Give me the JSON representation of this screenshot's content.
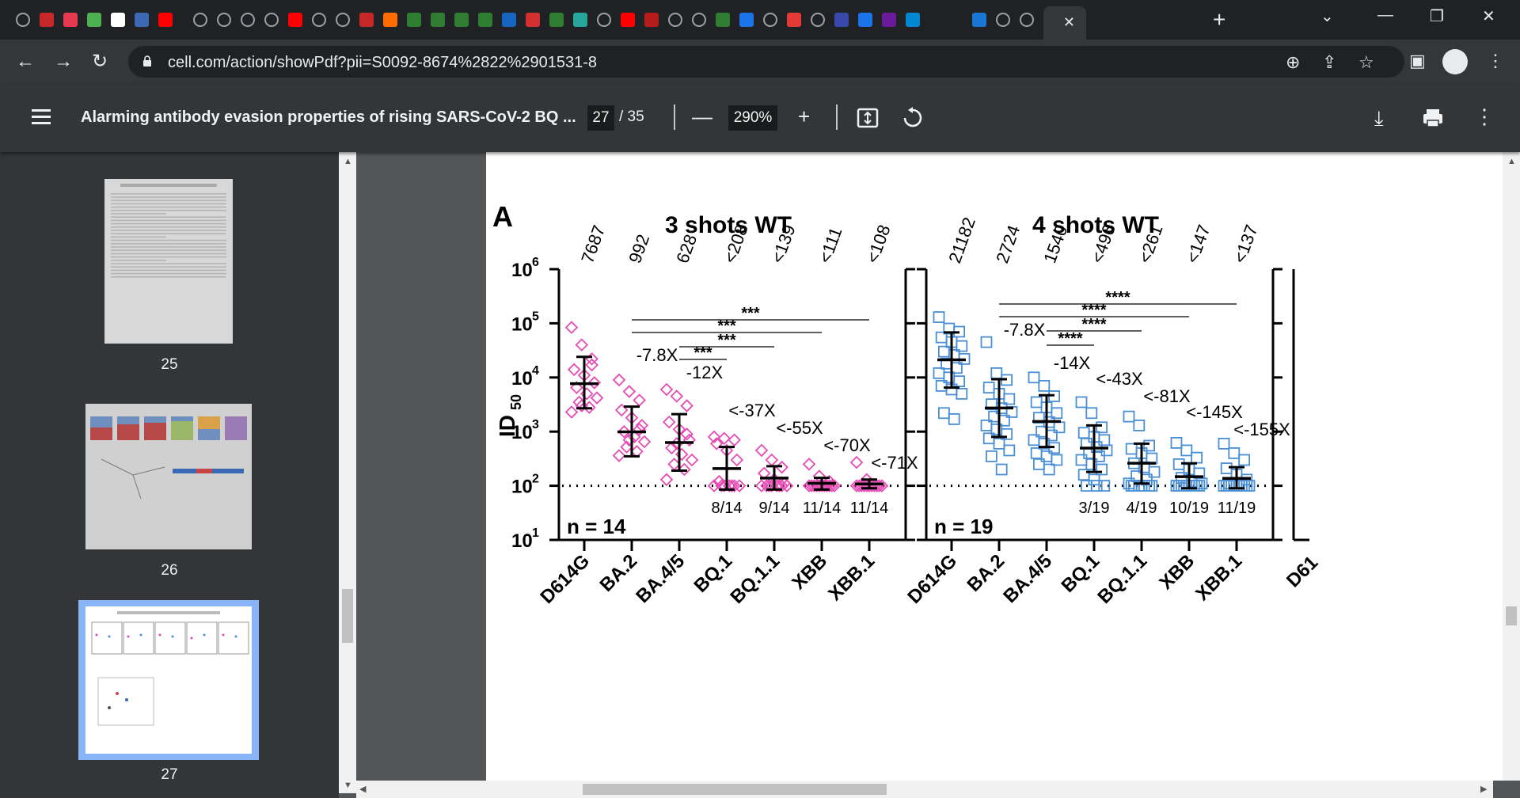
{
  "browser": {
    "url": "cell.com/action/showPdf?pii=S0092-8674%2822%2901531-8",
    "tab_favicons": [
      "globe-icon",
      "bi-icon",
      "flower-icon",
      "g-icon",
      "blank-icon",
      "stat-icon",
      "youtube-icon",
      "divider",
      "globe-icon",
      "globe-icon",
      "globe-icon",
      "globe-icon",
      "youtube-icon",
      "globe-icon",
      "globe-icon",
      "bi-icon",
      "bookmark-icon",
      "play-icon",
      "play-icon",
      "play-icon",
      "play-icon",
      "heart-icon",
      "sign-icon",
      "play-icon",
      "tile-icon",
      "globe-icon",
      "youtube-icon",
      "red-icon",
      "globe-icon",
      "globe-icon",
      "play-icon",
      "search-icon",
      "globe-icon",
      "redC-icon",
      "globe-icon",
      "flag-icon",
      "search-icon",
      "mail-icon",
      "link-icon",
      "tab-active",
      "t-icon",
      "globe-icon",
      "globe-icon",
      "search-icon"
    ]
  },
  "pdf": {
    "title": "Alarming antibody evasion properties of rising SARS-CoV-2 BQ ...",
    "current_page": "27",
    "total_pages": "/ 35",
    "zoom": "290%"
  },
  "sidebar": {
    "thumbnails": [
      {
        "page": "25"
      },
      {
        "page": "26"
      },
      {
        "page": "27"
      }
    ]
  },
  "figure": {
    "panel_label": "A",
    "y_axis_label": "ID",
    "y_axis_subscript": "50",
    "y_ticks": [
      "10",
      "10",
      "10",
      "10",
      "10",
      "10"
    ],
    "y_tick_exponents": [
      "6",
      "5",
      "4",
      "3",
      "2",
      "1"
    ],
    "panels": [
      {
        "title": "3 shots WT",
        "n_label": "n = 14",
        "color": "#e64cb4",
        "marker": "diamond",
        "categories": [
          "D614G",
          "BA.2",
          "BA.4/5",
          "BQ.1",
          "BQ.1.1",
          "XBB",
          "XBB.1"
        ],
        "gmt_labels": [
          "7687",
          "992",
          "628",
          "<208",
          "<139",
          "<111",
          "<108"
        ],
        "fold_labels": [
          "",
          "-7.8X",
          "-12X",
          "<-37X",
          "<-55X",
          "<-70X",
          "<-71X"
        ],
        "below_lod": [
          "",
          "",
          "",
          "8/14",
          "9/14",
          "11/14",
          "11/14"
        ],
        "significance": [
          "***",
          "***",
          "***",
          "***"
        ]
      },
      {
        "title": "4 shots WT",
        "n_label": "n = 19",
        "color": "#4a8fd6",
        "marker": "square",
        "categories": [
          "D614G",
          "BA.2",
          "BA.4/5",
          "BQ.1",
          "BQ.1.1",
          "XBB",
          "XBB.1"
        ],
        "gmt_labels": [
          "21182",
          "2724",
          "1540",
          "<496",
          "<261",
          "<147",
          "<137"
        ],
        "fold_labels": [
          "",
          "-7.8X",
          "-14X",
          "<-43X",
          "<-81X",
          "<-145X",
          "<-155X"
        ],
        "below_lod": [
          "",
          "",
          "",
          "3/19",
          "4/19",
          "10/19",
          "11/19"
        ],
        "significance": [
          "****",
          "****",
          "****",
          "****"
        ]
      }
    ],
    "next_panel_partial_label": "D61"
  },
  "chart_data": [
    {
      "type": "scatter",
      "title": "3 shots WT",
      "ylabel": "ID50",
      "yscale": "log",
      "ylim": [
        10,
        1000000
      ],
      "limit_of_detection": 100,
      "categories": [
        "D614G",
        "BA.2",
        "BA.4/5",
        "BQ.1",
        "BQ.1.1",
        "XBB",
        "XBB.1"
      ],
      "geometric_means": [
        7687,
        992,
        628,
        208,
        139,
        111,
        108
      ],
      "error_low": [
        2700,
        350,
        190,
        85,
        85,
        85,
        90
      ],
      "error_high": [
        24000,
        2900,
        2100,
        520,
        230,
        140,
        130
      ],
      "series": [
        {
          "name": "D614G",
          "values": [
            84000,
            40000,
            22000,
            14000,
            11000,
            8000,
            6500,
            5000,
            4200,
            3500,
            2800,
            2300,
            3000,
            17000
          ]
        },
        {
          "name": "BA.2",
          "values": [
            9000,
            5500,
            3800,
            2500,
            1800,
            1300,
            1000,
            800,
            650,
            520,
            430,
            360,
            700,
            1100
          ]
        },
        {
          "name": "BA.4/5",
          "values": [
            6000,
            4500,
            3000,
            1500,
            1100,
            700,
            500,
            380,
            300,
            250,
            200,
            130,
            600,
            900
          ]
        },
        {
          "name": "BQ.1",
          "values": [
            800,
            750,
            700,
            600,
            450,
            300,
            120,
            100,
            100,
            100,
            100,
            100,
            100,
            100
          ]
        },
        {
          "name": "BQ.1.1",
          "values": [
            450,
            300,
            220,
            170,
            130,
            110,
            100,
            100,
            100,
            100,
            100,
            100,
            100,
            100
          ]
        },
        {
          "name": "XBB",
          "values": [
            250,
            150,
            120,
            100,
            100,
            100,
            100,
            100,
            100,
            100,
            100,
            100,
            100,
            100
          ]
        },
        {
          "name": "XBB.1",
          "values": [
            270,
            130,
            100,
            100,
            100,
            100,
            100,
            100,
            100,
            100,
            100,
            100,
            100,
            100
          ]
        }
      ]
    },
    {
      "type": "scatter",
      "title": "4 shots WT",
      "ylabel": "ID50",
      "yscale": "log",
      "ylim": [
        10,
        1000000
      ],
      "limit_of_detection": 100,
      "categories": [
        "D614G",
        "BA.2",
        "BA.4/5",
        "BQ.1",
        "BQ.1.1",
        "XBB",
        "XBB.1"
      ],
      "geometric_means": [
        21182,
        2724,
        1540,
        496,
        261,
        147,
        137
      ],
      "error_low": [
        6500,
        800,
        520,
        180,
        110,
        90,
        90
      ],
      "error_high": [
        68000,
        9300,
        4700,
        1300,
        600,
        260,
        220
      ],
      "series": [
        {
          "name": "D614G",
          "values": [
            130000,
            80000,
            70000,
            55000,
            45000,
            38000,
            30000,
            26000,
            22000,
            18000,
            15000,
            12000,
            10000,
            8500,
            7000,
            6000,
            5000,
            2200,
            1700
          ]
        },
        {
          "name": "BA.2",
          "values": [
            45000,
            12000,
            9000,
            6500,
            5000,
            4000,
            3200,
            2700,
            2300,
            1900,
            1600,
            1300,
            1100,
            900,
            750,
            600,
            450,
            350,
            200
          ]
        },
        {
          "name": "BA.4/5",
          "values": [
            10000,
            7000,
            4500,
            3500,
            2800,
            2200,
            1800,
            1500,
            1200,
            1000,
            850,
            700,
            600,
            500,
            400,
            350,
            300,
            250,
            200
          ]
        },
        {
          "name": "BQ.1",
          "values": [
            3500,
            2200,
            1200,
            950,
            800,
            700,
            600,
            520,
            450,
            400,
            350,
            300,
            250,
            200,
            160,
            130,
            100,
            100,
            100
          ]
        },
        {
          "name": "BQ.1.1",
          "values": [
            1900,
            1300,
            550,
            480,
            400,
            320,
            260,
            220,
            180,
            150,
            130,
            110,
            100,
            100,
            100,
            100,
            100,
            100,
            100
          ]
        },
        {
          "name": "XBB",
          "values": [
            620,
            450,
            330,
            250,
            200,
            170,
            140,
            120,
            110,
            100,
            100,
            100,
            100,
            100,
            100,
            100,
            100,
            100,
            100
          ]
        },
        {
          "name": "XBB.1",
          "values": [
            600,
            400,
            300,
            210,
            160,
            130,
            110,
            100,
            100,
            100,
            100,
            100,
            100,
            100,
            100,
            100,
            100,
            100,
            100
          ]
        }
      ]
    }
  ]
}
